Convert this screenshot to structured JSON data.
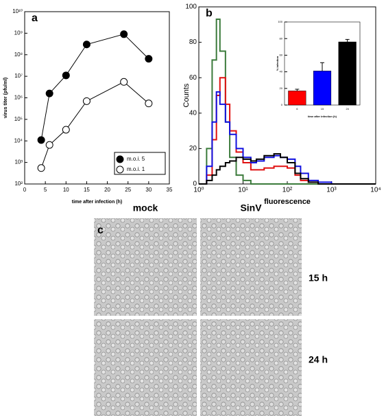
{
  "chart_data": [
    {
      "type": "line",
      "label": "a",
      "xlabel": "time after infection (h)",
      "ylabel": "virus titer (pfu/ml)",
      "x": [
        4,
        6,
        10,
        15,
        24,
        30
      ],
      "series": [
        {
          "name": "m.o.i. 5",
          "color": "#000000",
          "fill": "#000000",
          "values": [
            11000,
            1600000,
            11000000,
            300000000,
            900000000,
            65000000
          ]
        },
        {
          "name": "m.o.i. 1",
          "color": "#000000",
          "fill": "#ffffff",
          "values": [
            550,
            6500,
            33000,
            700000,
            5500000,
            550000
          ]
        }
      ],
      "xlim": [
        0,
        35
      ],
      "xticks": [
        0,
        5,
        10,
        15,
        20,
        25,
        30,
        35
      ],
      "ylim": [
        100,
        10000000000
      ],
      "log_y": true,
      "yticks": [
        {
          "value": 100,
          "label": "10²"
        },
        {
          "value": 1000,
          "label": "10³"
        },
        {
          "value": 10000,
          "label": "10⁴"
        },
        {
          "value": 100000,
          "label": "10⁵"
        },
        {
          "value": 1000000,
          "label": "10⁶"
        },
        {
          "value": 10000000,
          "label": "10⁷"
        },
        {
          "value": 100000000,
          "label": "10⁸"
        },
        {
          "value": 1000000000,
          "label": "10⁹"
        },
        {
          "value": 10000000000,
          "label": "10¹⁰"
        }
      ],
      "legend": "lower right"
    },
    {
      "type": "step",
      "label": "b",
      "xlabel": "fluorescence",
      "ylabel": "Counts",
      "x": [
        1,
        1.5,
        2,
        2.5,
        3,
        4,
        5,
        7,
        10,
        15,
        20,
        30,
        50,
        70,
        100,
        150,
        200,
        300,
        500,
        1000,
        2000,
        5000,
        10000
      ],
      "series": [
        {
          "color": "#3a7a3a",
          "values": [
            0,
            20,
            70,
            93,
            75,
            35,
            15,
            5,
            2,
            0,
            0,
            0,
            0,
            0,
            0,
            0,
            0,
            0,
            0,
            0,
            0,
            0,
            0
          ]
        },
        {
          "color": "#e01010",
          "values": [
            0,
            5,
            25,
            50,
            60,
            45,
            30,
            18,
            12,
            8,
            8,
            9,
            10,
            10,
            9,
            5,
            2,
            1,
            0,
            0,
            0,
            0,
            0
          ]
        },
        {
          "color": "#1010e0",
          "values": [
            0,
            10,
            35,
            52,
            45,
            35,
            28,
            20,
            15,
            12,
            13,
            15,
            16,
            15,
            14,
            10,
            6,
            2,
            1,
            0,
            0,
            0,
            0
          ]
        },
        {
          "color": "#000000",
          "values": [
            0,
            2,
            5,
            8,
            10,
            12,
            13,
            15,
            14,
            13,
            14,
            16,
            17,
            15,
            12,
            6,
            3,
            1,
            0,
            0,
            0,
            0,
            0
          ]
        }
      ],
      "xlim": [
        1,
        10000
      ],
      "log_x": true,
      "xticks": [
        {
          "value": 1,
          "label": "10⁰"
        },
        {
          "value": 10,
          "label": "10¹"
        },
        {
          "value": 100,
          "label": "10²"
        },
        {
          "value": 1000,
          "label": "10³"
        },
        {
          "value": 10000,
          "label": "10⁴"
        }
      ],
      "ylim": [
        0,
        100
      ],
      "yticks": [
        0,
        20,
        40,
        60,
        80,
        100
      ]
    },
    {
      "type": "bar",
      "xlabel": "time after infection (h)",
      "ylabel": "% infection",
      "categories": [
        "6",
        "15",
        "24"
      ],
      "values": [
        17,
        41,
        76
      ],
      "errors": [
        2,
        10,
        3
      ],
      "colors": [
        "#ff0000",
        "#0000ff",
        "#000000"
      ],
      "ylim": [
        0,
        100
      ],
      "yticks": [
        0,
        20,
        40,
        60,
        80,
        100
      ]
    }
  ],
  "panel_c": {
    "label": "c",
    "columns": [
      "mock",
      "SinV"
    ],
    "rows": [
      "15 h",
      "24 h"
    ]
  }
}
